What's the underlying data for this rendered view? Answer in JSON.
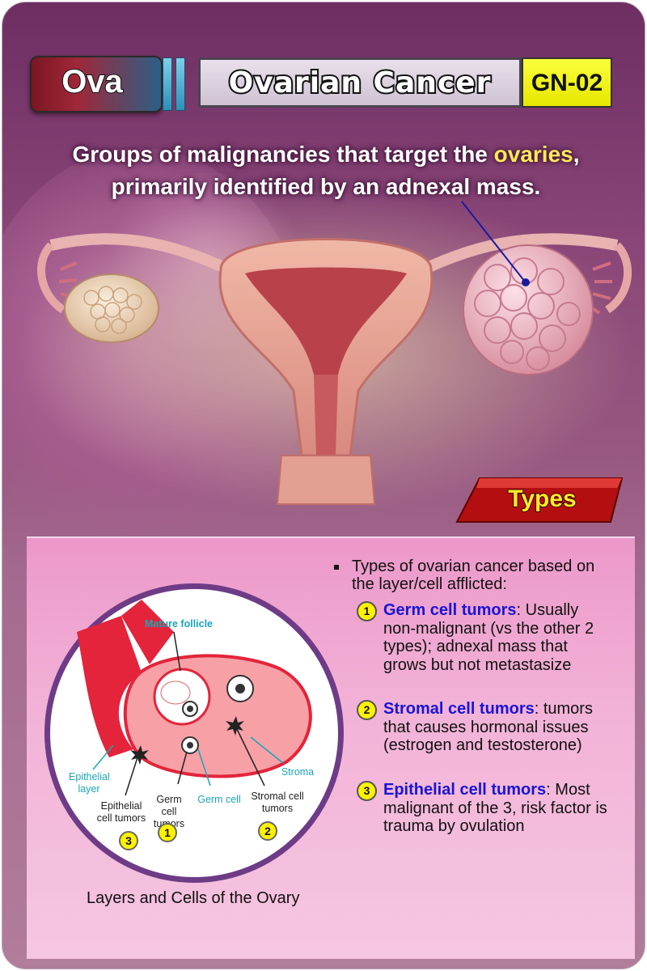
{
  "header": {
    "category": "Ova",
    "title": "Ovarian Cancer",
    "code": "GN-02"
  },
  "intro": {
    "part1": "Groups of malignancies that target the ",
    "highlight": "ovaries",
    "part2": ",",
    "line2": "primarily identified by an adnexal mass."
  },
  "section_title": "Types",
  "bullet": {
    "lead": "Types of ovarian cancer based on the layer/cell afflicted:",
    "types": [
      {
        "num": "1",
        "name": "Germ cell tumors",
        "desc": ": Usually non-malignant (vs the other 2 types); adnexal mass that grows but not metastasize"
      },
      {
        "num": "2",
        "name": "Stromal cell tumors",
        "desc": ": tumors that causes hormonal issues (estrogen and testosterone)"
      },
      {
        "num": "3",
        "name": "Epithelial cell tumors",
        "desc": ": Most malignant of the 3, risk factor is trauma by ovulation"
      }
    ]
  },
  "diagram": {
    "labels": {
      "mature_follicle": "Mature follicle",
      "epithelial_layer": "Epithelial layer",
      "epithelial_tumors": "Epithelial cell tumors",
      "germ_tumors": "Germ cell tumors",
      "germ_cell": "Germ cell",
      "stroma": "Stroma",
      "stromal_tumors": "Stromal cell tumors"
    },
    "numbers": {
      "epithelial": "3",
      "germ": "1",
      "stromal": "2"
    },
    "caption": "Layers and Cells of the Ovary"
  },
  "colors": {
    "card_background": "#8a4678",
    "title_highlight": "#ffe85a",
    "type_name": "#1a14d6",
    "number_badge": "#fff200",
    "diagram_border": "#6e3b86",
    "ovary_fill": "#f7a0a6",
    "ovary_outline": "#e3243b"
  }
}
